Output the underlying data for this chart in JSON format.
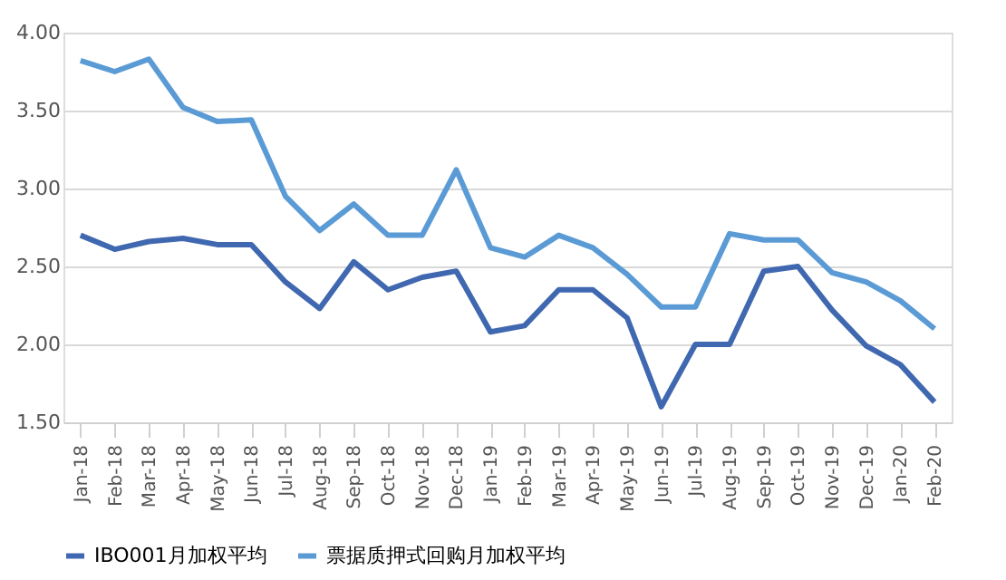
{
  "chart_data": {
    "type": "line",
    "categories": [
      "Jan-18",
      "Feb-18",
      "Mar-18",
      "Apr-18",
      "May-18",
      "Jun-18",
      "Jul-18",
      "Aug-18",
      "Sep-18",
      "Oct-18",
      "Nov-18",
      "Dec-18",
      "Jan-19",
      "Feb-19",
      "Mar-19",
      "Apr-19",
      "May-19",
      "Jun-19",
      "Jul-19",
      "Aug-19",
      "Sep-19",
      "Oct-19",
      "Nov-19",
      "Dec-19",
      "Jan-20",
      "Feb-20"
    ],
    "series": [
      {
        "name": "IBO001月加权平均",
        "color": "#4068b0",
        "values": [
          2.7,
          2.61,
          2.66,
          2.68,
          2.64,
          2.64,
          2.4,
          2.23,
          2.53,
          2.35,
          2.43,
          2.47,
          2.08,
          2.12,
          2.35,
          2.35,
          2.17,
          1.6,
          2.0,
          2.0,
          2.47,
          2.5,
          2.22,
          1.99,
          1.87,
          1.63
        ]
      },
      {
        "name": "票据质押式回购月加权平均",
        "color": "#5b9bd5",
        "values": [
          3.82,
          3.75,
          3.83,
          3.52,
          3.43,
          3.44,
          2.95,
          2.73,
          2.9,
          2.7,
          2.7,
          3.12,
          2.62,
          2.56,
          2.7,
          2.62,
          2.45,
          2.24,
          2.24,
          2.71,
          2.67,
          2.67,
          2.46,
          2.4,
          2.28,
          2.1
        ]
      }
    ],
    "ylim": [
      1.5,
      4.0
    ],
    "yticks": [
      {
        "value": 1.5,
        "label": "1.50"
      },
      {
        "value": 2.0,
        "label": "2.00"
      },
      {
        "value": 2.5,
        "label": "2.50"
      },
      {
        "value": 3.0,
        "label": "3.00"
      },
      {
        "value": 3.5,
        "label": "3.50"
      },
      {
        "value": 4.0,
        "label": "4.00"
      }
    ],
    "grid": "y",
    "legend": "bottom",
    "marker": "none",
    "line_style": "solid"
  }
}
